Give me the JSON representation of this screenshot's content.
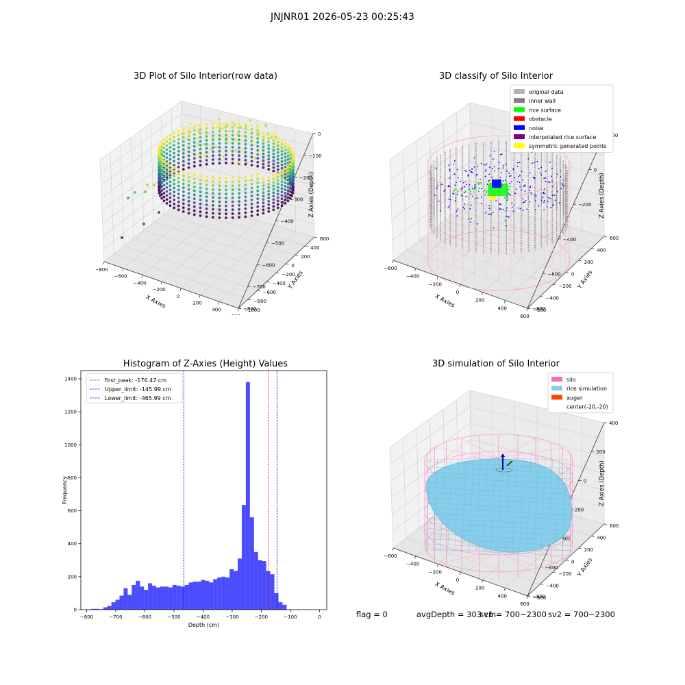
{
  "suptitle": "JNJNR01 2026-05-23 00:25:43",
  "chart_data": [
    {
      "type": "scatter3d",
      "title": "3D Plot of Silo Interior(row data)",
      "xlabel": "X Axies",
      "ylabel": "Y Axies",
      "zlabel": "Z Axies (Depth)",
      "x_ticks": [
        "−800",
        "−600",
        "−400",
        "−200",
        "0",
        "200",
        "400",
        "600"
      ],
      "y_ticks": [
        "−1000",
        "−800",
        "−600",
        "−400",
        "−200",
        "0",
        "200",
        "400",
        "600"
      ],
      "z_ticks": [
        "0",
        "−100",
        "−200",
        "−300",
        "−400",
        "−500",
        "−600",
        "−700",
        "−800"
      ],
      "colormap": "viridis"
    },
    {
      "type": "scatter3d",
      "title": "3D classify of Silo Interior",
      "xlabel": "X Axies",
      "ylabel": "Y Axies",
      "zlabel": "Z Axies (Depth)",
      "x_ticks": [
        "−600",
        "−400",
        "−200",
        "0",
        "200",
        "400",
        "600"
      ],
      "y_ticks": [
        "−600",
        "−400",
        "−200",
        "0",
        "200",
        "400",
        "600"
      ],
      "z_ticks": [
        "200",
        "0",
        "−200",
        "−400",
        "−600",
        "−800"
      ],
      "legend": [
        {
          "label": "original data",
          "color": "#b3b3b3"
        },
        {
          "label": "inner wall",
          "color": "#808080"
        },
        {
          "label": "rice surface",
          "color": "#00ff00"
        },
        {
          "label": "obstacle",
          "color": "#ff0000"
        },
        {
          "label": "noise",
          "color": "#0000ff"
        },
        {
          "label": "interpolated rice surface",
          "color": "#800080"
        },
        {
          "label": "symmetric generated points",
          "color": "#ffff00"
        }
      ]
    },
    {
      "type": "bar",
      "title": "Histogram of Z-Axies (Height) Values",
      "xlabel": "Depth (cm)",
      "ylabel": "Frequency",
      "xlim": [
        -820,
        25
      ],
      "ylim": [
        0,
        1450
      ],
      "x_ticks": [
        -800,
        -700,
        -600,
        -500,
        -400,
        -300,
        -200,
        -100,
        0
      ],
      "y_ticks": [
        0,
        200,
        400,
        600,
        800,
        1000,
        1200,
        1400
      ],
      "bin_start": -785,
      "bin_width": 14,
      "values": [
        5,
        5,
        3,
        14,
        22,
        45,
        60,
        85,
        130,
        90,
        150,
        175,
        140,
        120,
        160,
        145,
        135,
        140,
        140,
        135,
        150,
        145,
        140,
        150,
        165,
        170,
        170,
        180,
        175,
        165,
        185,
        195,
        200,
        195,
        245,
        235,
        310,
        635,
        1380,
        560,
        350,
        300,
        295,
        235,
        215,
        100,
        45,
        30
      ],
      "bar_color": "#0000ff",
      "vlines": [
        {
          "label": "first_peak: -176.47 cm",
          "x": -176.47,
          "color": "#ff0000"
        },
        {
          "label": "Upper_limit: -145.99 cm",
          "x": -145.99,
          "color": "#0000cc"
        },
        {
          "label": "Lower_limit: -465.99 cm",
          "x": -465.99,
          "color": "#0000cc"
        }
      ],
      "legend_position": "top-left"
    },
    {
      "type": "surface3d",
      "title": "3D simulation of Silo Interior",
      "xlabel": "X Axies",
      "ylabel": "Y Axies",
      "zlabel": "Z Axies (Depth)",
      "x_ticks": [
        "−600",
        "−400",
        "−200",
        "0",
        "200",
        "400",
        "600"
      ],
      "y_ticks": [
        "−600",
        "−400",
        "−200",
        "0",
        "200",
        "400",
        "600"
      ],
      "z_ticks": [
        "400",
        "200",
        "0",
        "−200",
        "−400",
        "−600",
        "−800"
      ],
      "legend": [
        {
          "label": "silo",
          "color": "#ff69b4"
        },
        {
          "label": "rice simulation",
          "color": "#87ceeb"
        },
        {
          "label": "auger",
          "color": "#ff4500"
        },
        {
          "label": "center(-20,-20)",
          "color": ""
        }
      ]
    }
  ],
  "footer": {
    "flag": "flag = 0",
    "avg": "avgDepth = 303 cm",
    "sv1": "sv1 = 700~2300",
    "sv2": "sv2 = 700~2300"
  }
}
